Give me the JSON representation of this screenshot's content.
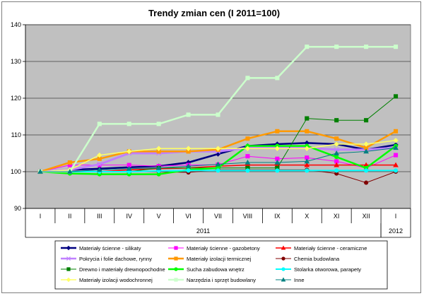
{
  "chart_data": {
    "type": "line",
    "title": "Trendy zmian cen (I 2011=100)",
    "xlabel": "",
    "ylabel": "",
    "categories": [
      "I",
      "II",
      "III",
      "IV",
      "V",
      "VI",
      "VII",
      "VIII",
      "IX",
      "X",
      "XI",
      "XII",
      "I"
    ],
    "groups": [
      {
        "label": "2011",
        "from": 0,
        "to": 11
      },
      {
        "label": "2012",
        "from": 12,
        "to": 12
      }
    ],
    "ylim": [
      90,
      140
    ],
    "yticks": [
      90,
      100,
      110,
      120,
      130,
      140
    ],
    "ytick_labels": [
      "90",
      "100",
      "110",
      "120",
      "130",
      "140"
    ],
    "grid": true,
    "plot_background": "#c0c0c0",
    "legend_position": "bottom",
    "series": [
      {
        "name": "Materiały ścienne - silikaty",
        "color": "#000080",
        "marker": "diamond",
        "width": 2.5,
        "values": [
          100,
          100.5,
          100.8,
          101.2,
          101.5,
          102.5,
          104.8,
          107,
          107.5,
          107.8,
          107.5,
          106,
          107.3
        ]
      },
      {
        "name": "Materiały ścienne - gazobetony",
        "color": "#ff00ff",
        "marker": "square",
        "width": 1,
        "values": [
          100,
          101.8,
          101.8,
          101.8,
          101.5,
          101.8,
          101.9,
          104.2,
          103.5,
          103.8,
          102.8,
          101,
          104.5
        ]
      },
      {
        "name": "Materiały ścienne - ceramiczne",
        "color": "#ff0000",
        "marker": "triangle",
        "width": 1.5,
        "values": [
          100,
          100,
          100,
          100.5,
          100.8,
          101,
          101.5,
          101.8,
          101.8,
          101.8,
          101.8,
          101.8,
          101.8
        ]
      },
      {
        "name": "Pokrycia i folie dachowe, rynny",
        "color": "#c080ff",
        "marker": "x",
        "width": 3,
        "values": [
          100,
          100.5,
          102,
          105,
          105,
          105.5,
          105.5,
          106.5,
          106.5,
          106.5,
          106,
          106,
          106.5
        ]
      },
      {
        "name": "Materiały izolacji termicznej",
        "color": "#ff9900",
        "marker": "square",
        "width": 2.5,
        "values": [
          100,
          102.5,
          103.5,
          105.5,
          105.5,
          105.5,
          106,
          109,
          111,
          111,
          109,
          106.5,
          111
        ]
      },
      {
        "name": "Chemia budowlana",
        "color": "#800000",
        "marker": "circle",
        "width": 1,
        "values": [
          100,
          100,
          100,
          100,
          100,
          99.8,
          100.5,
          100.5,
          100.5,
          100.5,
          99.5,
          97,
          100
        ]
      },
      {
        "name": "Drewno i materiały drewnopochodne",
        "color": "#008000",
        "marker": "square",
        "width": 1,
        "values": [
          100,
          100,
          100,
          100,
          101,
          101,
          101,
          101,
          101,
          114.5,
          114,
          114,
          120.5
        ]
      },
      {
        "name": "Sucha zabudowa wnętrz",
        "color": "#00ff00",
        "marker": "circle",
        "width": 2.5,
        "values": [
          100,
          99.5,
          99.3,
          99.3,
          99.3,
          100.5,
          101,
          107,
          107,
          107,
          104,
          101,
          107
        ]
      },
      {
        "name": "Stolarka otworowa, parapety",
        "color": "#00ffff",
        "marker": "circle",
        "width": 2,
        "values": [
          100,
          100,
          100,
          100,
          100.2,
          100.3,
          100.3,
          100.3,
          100.3,
          100.3,
          100.3,
          100.3,
          100.3
        ]
      },
      {
        "name": "Materiały izolacji wodochronnej",
        "color": "#ffff66",
        "marker": "diamond",
        "width": 1.5,
        "values": [
          100,
          100.5,
          104.5,
          105.5,
          106.3,
          106.3,
          106.3,
          106.3,
          106.3,
          106.3,
          107.5,
          107.5,
          108.5
        ]
      },
      {
        "name": "Narzędzia i sprzęt budowlany",
        "color": "#ccffcc",
        "marker": "square",
        "width": 2.5,
        "values": [
          100,
          100,
          113,
          113,
          113,
          115.5,
          115.5,
          125.5,
          125.5,
          134,
          134,
          134,
          134
        ]
      },
      {
        "name": "Inne",
        "color": "#008080",
        "marker": "triangle",
        "width": 1,
        "values": [
          100,
          100,
          100.5,
          100.8,
          101,
          101.5,
          102,
          102.5,
          102.5,
          102.8,
          105,
          105.5,
          106.5
        ]
      }
    ]
  }
}
